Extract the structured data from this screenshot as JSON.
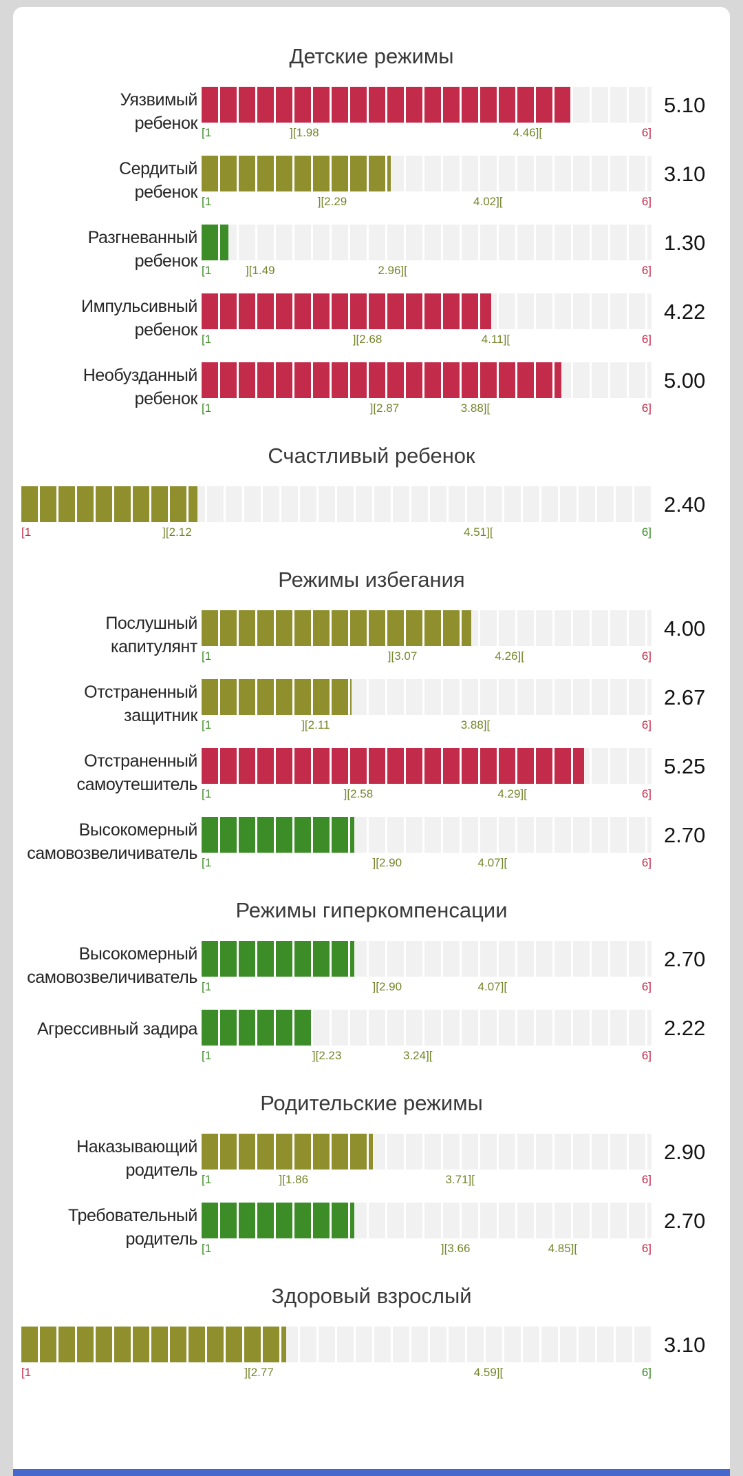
{
  "page": {
    "background": "#d8d8d8",
    "card_background": "#ffffff",
    "bottom_strip_color": "#4667cc"
  },
  "colors": {
    "red": "#c32b4a",
    "olive": "#8f8f2e",
    "green": "#3c8c28",
    "track": "#f1f1f1",
    "mid_marker": "#74862b",
    "title_text": "#3a3a3a",
    "label_text": "#262626",
    "value_text": "#141414"
  },
  "chart_data": {
    "type": "bar",
    "orientation": "horizontal",
    "xlim": [
      1,
      6
    ],
    "legend": "bar color: green = below norm range, olive = within norm range, red = above norm range; markers show [min ][norm_low norm_high][ max]",
    "groups": [
      {
        "title": "Детские режимы",
        "full_width": false,
        "positive_scale": false,
        "bars": [
          {
            "label_lines": [
              "Уязвимый",
              "ребенок"
            ],
            "value": 5.1,
            "norm_low": 1.98,
            "norm_high": 4.46,
            "color": "red"
          },
          {
            "label_lines": [
              "Сердитый",
              "ребенок"
            ],
            "value": 3.1,
            "norm_low": 2.29,
            "norm_high": 4.02,
            "color": "olive"
          },
          {
            "label_lines": [
              "Разгневанный",
              "ребенок"
            ],
            "value": 1.3,
            "norm_low": 1.49,
            "norm_high": 2.96,
            "color": "green"
          },
          {
            "label_lines": [
              "Импульсивный",
              "ребенок"
            ],
            "value": 4.22,
            "norm_low": 2.68,
            "norm_high": 4.11,
            "color": "red"
          },
          {
            "label_lines": [
              "Необузданный",
              "ребенок"
            ],
            "value": 5.0,
            "norm_low": 2.87,
            "norm_high": 3.88,
            "color": "red"
          }
        ]
      },
      {
        "title": "Счастливый ребенок",
        "full_width": true,
        "positive_scale": true,
        "bars": [
          {
            "label_lines": [],
            "value": 2.4,
            "norm_low": 2.12,
            "norm_high": 4.51,
            "color": "olive"
          }
        ]
      },
      {
        "title": "Режимы избегания",
        "full_width": false,
        "positive_scale": false,
        "bars": [
          {
            "label_lines": [
              "Послушный",
              "капитулянт"
            ],
            "value": 4.0,
            "norm_low": 3.07,
            "norm_high": 4.26,
            "color": "olive"
          },
          {
            "label_lines": [
              "Отстраненный",
              "защитник"
            ],
            "value": 2.67,
            "norm_low": 2.11,
            "norm_high": 3.88,
            "color": "olive"
          },
          {
            "label_lines": [
              "Отстраненный",
              "самоутешитель"
            ],
            "value": 5.25,
            "norm_low": 2.58,
            "norm_high": 4.29,
            "color": "red"
          },
          {
            "label_lines": [
              "Высокомерный",
              "самовозвеличиватель"
            ],
            "value": 2.7,
            "norm_low": 2.9,
            "norm_high": 4.07,
            "color": "green"
          }
        ]
      },
      {
        "title": "Режимы гиперкомпенсации",
        "full_width": false,
        "positive_scale": false,
        "bars": [
          {
            "label_lines": [
              "Высокомерный",
              "самовозвеличиватель"
            ],
            "value": 2.7,
            "norm_low": 2.9,
            "norm_high": 4.07,
            "color": "green"
          },
          {
            "label_lines": [
              "Агрессивный задира"
            ],
            "value": 2.22,
            "norm_low": 2.23,
            "norm_high": 3.24,
            "color": "green"
          }
        ]
      },
      {
        "title": "Родительские режимы",
        "full_width": false,
        "positive_scale": false,
        "bars": [
          {
            "label_lines": [
              "Наказывающий",
              "родитель"
            ],
            "value": 2.9,
            "norm_low": 1.86,
            "norm_high": 3.71,
            "color": "olive"
          },
          {
            "label_lines": [
              "Требовательный",
              "родитель"
            ],
            "value": 2.7,
            "norm_low": 3.66,
            "norm_high": 4.85,
            "color": "green"
          }
        ]
      },
      {
        "title": "Здоровый взрослый",
        "full_width": true,
        "positive_scale": true,
        "bars": [
          {
            "label_lines": [],
            "value": 3.1,
            "norm_low": 2.77,
            "norm_high": 4.59,
            "color": "olive"
          }
        ]
      }
    ]
  }
}
